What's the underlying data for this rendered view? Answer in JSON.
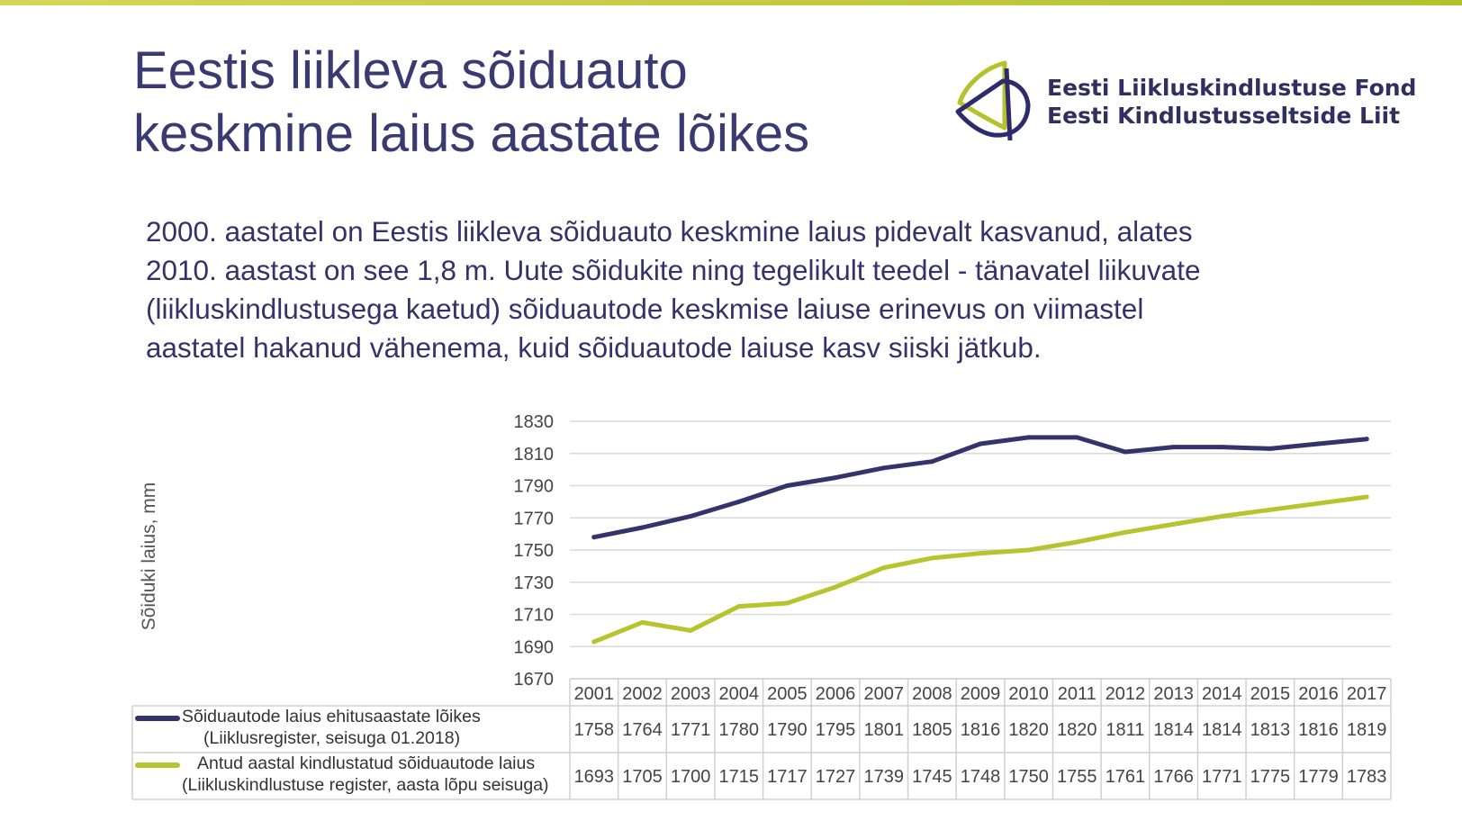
{
  "title": {
    "line1": "Eestis liikleva sõiduauto",
    "line2": "keskmine laius aastate lõikes"
  },
  "logo": {
    "line1": "Eesti Liikluskindlustuse Fond",
    "line2": "Eesti Kindlustusseltside Liit",
    "colors": {
      "navy": "#2d2b6b",
      "lime": "#b5c22d"
    }
  },
  "intro": {
    "line1": "2000. aastatel on Eestis liikleva sõiduauto keskmine laius pidevalt kasvanud, alates",
    "line2": "2010. aastast on see 1,8 m. Uute sõidukite ning tegelikult teedel - tänavatel liikuvate",
    "line3": "(liikluskindlustusega kaetud) sõiduautode keskmise laiuse erinevus on viimastel",
    "line4": "aastatel hakanud vähenema, kuid sõiduautode laiuse kasv siiski jätkub."
  },
  "chart_data": {
    "type": "line",
    "ylabel": "Sõiduki laius, mm",
    "ylim": [
      1670,
      1830
    ],
    "yticks": [
      1830,
      1810,
      1790,
      1770,
      1750,
      1730,
      1710,
      1690,
      1670
    ],
    "grid": true,
    "legend": "data-table",
    "categories": [
      "2001",
      "2002",
      "2003",
      "2004",
      "2005",
      "2006",
      "2007",
      "2008",
      "2009",
      "2010",
      "2011",
      "2012",
      "2013",
      "2014",
      "2015",
      "2016",
      "2017"
    ],
    "series": [
      {
        "name": "Sõiduautode laius ehitusaastate lõikes",
        "name_line2": "(Liiklusregister, seisuga 01.2018)",
        "color": "#35336b",
        "values": [
          1758,
          1764,
          1771,
          1780,
          1790,
          1795,
          1801,
          1805,
          1816,
          1820,
          1820,
          1811,
          1814,
          1814,
          1813,
          1816,
          1819
        ]
      },
      {
        "name": "Antud aastal kindlustatud sõiduautode laius",
        "name_line2": "(Liikluskindlustuse register, aasta lõpu seisuga)",
        "color": "#b8c42e",
        "values": [
          1693,
          1705,
          1700,
          1715,
          1717,
          1727,
          1739,
          1745,
          1748,
          1750,
          1755,
          1761,
          1766,
          1771,
          1775,
          1779,
          1783
        ]
      }
    ]
  }
}
